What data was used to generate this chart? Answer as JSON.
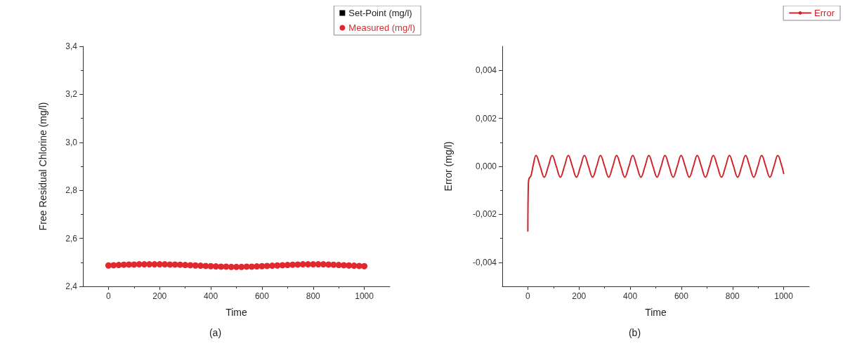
{
  "chart_data": [
    {
      "type": "scatter",
      "xlabel": "Time",
      "ylabel": "Free Residual Chlorine (mg/l)",
      "annotations": [
        "(a)"
      ],
      "legend": "top right",
      "marker": "circle",
      "xlim": [
        -100,
        1100
      ],
      "xticks": [
        0,
        200,
        400,
        600,
        800,
        1000
      ],
      "ylim": [
        2.4,
        3.4
      ],
      "yticks": [
        {
          "value": 2.4,
          "label": "2,4"
        },
        {
          "value": 2.6,
          "label": "2,6"
        },
        {
          "value": 2.8,
          "label": "2,8"
        },
        {
          "value": 3.0,
          "label": "3,0"
        },
        {
          "value": 3.2,
          "label": "3,2"
        },
        {
          "value": 3.4,
          "label": "3,4"
        }
      ],
      "series": [
        {
          "name": "Set-Point (mg/l)",
          "color": "#000000",
          "marker": "square"
        },
        {
          "name": "Measured (mg/l)",
          "color": "#e0282e",
          "x": [
            0,
            20,
            40,
            60,
            80,
            100,
            120,
            140,
            160,
            180,
            200,
            220,
            240,
            260,
            280,
            300,
            320,
            340,
            360,
            380,
            400,
            420,
            440,
            460,
            480,
            500,
            520,
            540,
            560,
            580,
            600,
            620,
            640,
            660,
            680,
            700,
            720,
            740,
            760,
            780,
            800,
            820,
            840,
            860,
            880,
            900,
            920,
            940,
            960,
            980,
            1000
          ],
          "values": [
            2.487,
            2.488,
            2.489,
            2.49,
            2.491,
            2.491,
            2.492,
            2.492,
            2.492,
            2.492,
            2.492,
            2.492,
            2.491,
            2.491,
            2.49,
            2.489,
            2.488,
            2.487,
            2.486,
            2.485,
            2.484,
            2.483,
            2.482,
            2.482,
            2.481,
            2.481,
            2.481,
            2.482,
            2.482,
            2.483,
            2.484,
            2.485,
            2.486,
            2.487,
            2.488,
            2.489,
            2.49,
            2.491,
            2.492,
            2.492,
            2.492,
            2.492,
            2.492,
            2.491,
            2.49,
            2.489,
            2.488,
            2.487,
            2.486,
            2.485,
            2.484
          ]
        }
      ]
    },
    {
      "type": "line",
      "xlabel": "Time",
      "ylabel": "Error (mg/l)",
      "annotations": [
        "(b)"
      ],
      "legend": "top right",
      "line_style": "solid",
      "xlim": [
        -100,
        1100
      ],
      "xticks": [
        0,
        200,
        400,
        600,
        800,
        1000
      ],
      "ylim": [
        -0.005,
        0.005
      ],
      "yticks": [
        {
          "value": -0.004,
          "label": "-0,004"
        },
        {
          "value": -0.002,
          "label": "-0,002"
        },
        {
          "value": 0,
          "label": "0,000"
        },
        {
          "value": 0.002,
          "label": "0,002"
        },
        {
          "value": 0.004,
          "label": "0,004"
        }
      ],
      "series": [
        {
          "name": "Error",
          "color": "#d0232a",
          "x": [
            0,
            2,
            5,
            12,
            20,
            32,
            48,
            64,
            80,
            95,
            111,
            127,
            143,
            158,
            174,
            190,
            206,
            221,
            237,
            253,
            269,
            284,
            300,
            316,
            332,
            347,
            363,
            379,
            395,
            410,
            426,
            442,
            458,
            473,
            489,
            505,
            521,
            536,
            552,
            568,
            584,
            599,
            615,
            631,
            647,
            662,
            678,
            694,
            710,
            725,
            741,
            757,
            773,
            788,
            804,
            820,
            836,
            851,
            867,
            883,
            899,
            914,
            930,
            946,
            962,
            977,
            993,
            1000
          ],
          "values": [
            -0.0027,
            -0.0007,
            -0.0005,
            -0.0004,
            0,
            0.00045,
            0,
            -0.00045,
            0,
            0.00045,
            0,
            -0.00045,
            0,
            0.00045,
            0,
            -0.00045,
            0,
            0.00045,
            0,
            -0.00045,
            0,
            0.00045,
            0,
            -0.00045,
            0,
            0.00045,
            0,
            -0.00045,
            0,
            0.00045,
            0,
            -0.00045,
            0,
            0.00045,
            0,
            -0.00045,
            0,
            0.00045,
            0,
            -0.00045,
            0,
            0.00045,
            0,
            -0.00045,
            0,
            0.00045,
            0,
            -0.00045,
            0,
            0.00045,
            0,
            -0.00045,
            0,
            0.00045,
            0,
            -0.00045,
            0,
            0.00045,
            0,
            -0.00045,
            0,
            0.00045,
            0,
            -0.00045,
            0,
            0.00045,
            0,
            -0.0003
          ]
        }
      ]
    }
  ]
}
